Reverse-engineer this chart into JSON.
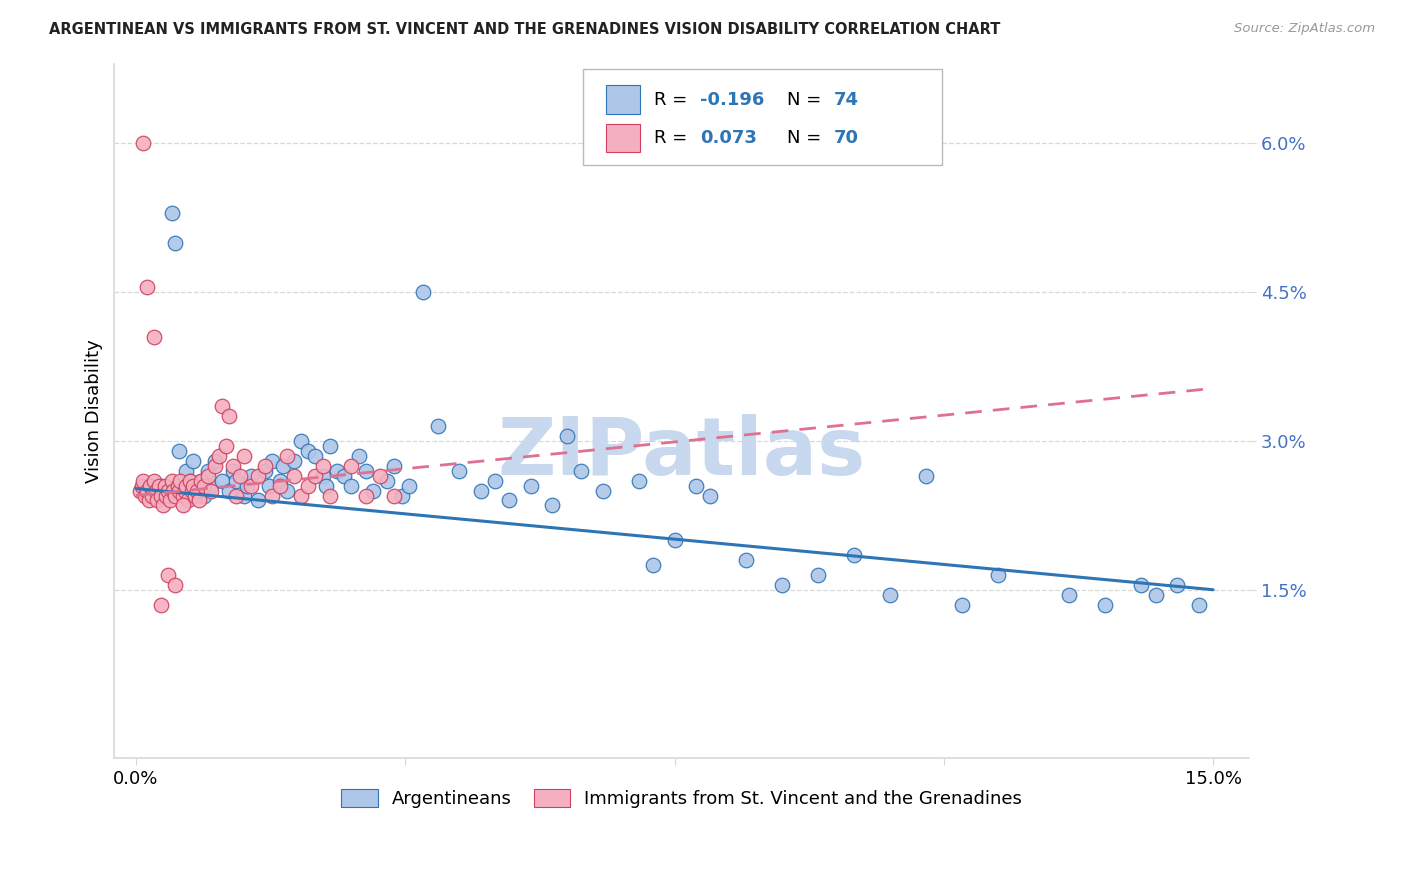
{
  "title": "ARGENTINEAN VS IMMIGRANTS FROM ST. VINCENT AND THE GRENADINES VISION DISABILITY CORRELATION CHART",
  "source": "Source: ZipAtlas.com",
  "ylabel": "Vision Disability",
  "xlim_left": -0.3,
  "xlim_right": 15.5,
  "ylim_bottom": -0.2,
  "ylim_top": 6.8,
  "yticks": [
    1.5,
    3.0,
    4.5,
    6.0
  ],
  "ytick_labels": [
    "1.5%",
    "3.0%",
    "4.5%",
    "6.0%"
  ],
  "xtick_positions": [
    0,
    3.75,
    7.5,
    11.25,
    15
  ],
  "xtick_labels": [
    "0.0%",
    "",
    "",
    "",
    "15.0%"
  ],
  "blue_R_text": "-0.196",
  "blue_N_text": "74",
  "pink_R_text": "0.073",
  "pink_N_text": "70",
  "blue_face": "#aec6e8",
  "blue_edge": "#2e75b6",
  "pink_face": "#f4b0c0",
  "pink_edge": "#d04060",
  "blue_line": "#2e75b6",
  "pink_line": "#e07090",
  "watermark_text": "ZIPatlas",
  "watermark_color": "#c8d8ee",
  "grid_color": "#d8d8d8",
  "title_color": "#222222",
  "source_color": "#999999",
  "yticklabel_color": "#4472c4",
  "blue_line_intercept": 2.52,
  "blue_line_slope": -0.068,
  "pink_line_intercept": 2.45,
  "pink_line_slope": 0.072,
  "blue_scatter_x": [
    0.35,
    0.5,
    0.55,
    0.6,
    0.7,
    0.75,
    0.8,
    0.85,
    0.9,
    0.95,
    1.0,
    1.05,
    1.1,
    1.2,
    1.3,
    1.35,
    1.4,
    1.5,
    1.55,
    1.6,
    1.7,
    1.8,
    1.85,
    1.9,
    2.0,
    2.05,
    2.1,
    2.2,
    2.3,
    2.4,
    2.5,
    2.6,
    2.65,
    2.7,
    2.8,
    2.9,
    3.0,
    3.1,
    3.2,
    3.3,
    3.5,
    3.6,
    3.7,
    3.8,
    4.0,
    4.2,
    4.5,
    4.8,
    5.0,
    5.2,
    5.5,
    5.8,
    6.0,
    6.2,
    6.5,
    7.0,
    7.2,
    7.5,
    7.8,
    8.0,
    8.5,
    9.0,
    9.5,
    10.0,
    10.5,
    11.0,
    11.5,
    12.0,
    13.0,
    13.5,
    14.0,
    14.2,
    14.5,
    14.8
  ],
  "blue_scatter_y": [
    2.55,
    5.3,
    5.0,
    2.9,
    2.7,
    2.6,
    2.8,
    2.5,
    2.6,
    2.45,
    2.7,
    2.55,
    2.8,
    2.6,
    2.5,
    2.7,
    2.6,
    2.45,
    2.55,
    2.65,
    2.4,
    2.7,
    2.55,
    2.8,
    2.6,
    2.75,
    2.5,
    2.8,
    3.0,
    2.9,
    2.85,
    2.65,
    2.55,
    2.95,
    2.7,
    2.65,
    2.55,
    2.85,
    2.7,
    2.5,
    2.6,
    2.75,
    2.45,
    2.55,
    4.5,
    3.15,
    2.7,
    2.5,
    2.6,
    2.4,
    2.55,
    2.35,
    3.05,
    2.7,
    2.5,
    2.6,
    1.75,
    2.0,
    2.55,
    2.45,
    1.8,
    1.55,
    1.65,
    1.85,
    1.45,
    2.65,
    1.35,
    1.65,
    1.45,
    1.35,
    1.55,
    1.45,
    1.55,
    1.35
  ],
  "pink_scatter_x": [
    0.05,
    0.08,
    0.1,
    0.12,
    0.15,
    0.18,
    0.2,
    0.22,
    0.25,
    0.28,
    0.3,
    0.32,
    0.35,
    0.38,
    0.4,
    0.42,
    0.45,
    0.48,
    0.5,
    0.52,
    0.55,
    0.58,
    0.6,
    0.62,
    0.65,
    0.68,
    0.7,
    0.72,
    0.75,
    0.78,
    0.8,
    0.82,
    0.85,
    0.88,
    0.9,
    0.95,
    1.0,
    1.05,
    1.1,
    1.15,
    1.2,
    1.25,
    1.3,
    1.35,
    1.4,
    1.45,
    1.5,
    1.6,
    1.7,
    1.8,
    1.9,
    2.0,
    2.1,
    2.2,
    2.3,
    2.4,
    2.5,
    2.6,
    2.7,
    3.0,
    3.2,
    3.4,
    3.6,
    0.15,
    0.25,
    0.35,
    0.45,
    0.55,
    0.65,
    0.1
  ],
  "pink_scatter_y": [
    2.5,
    2.55,
    2.6,
    2.45,
    2.5,
    2.4,
    2.55,
    2.45,
    2.6,
    2.5,
    2.4,
    2.55,
    2.45,
    2.35,
    2.55,
    2.45,
    2.5,
    2.4,
    2.6,
    2.5,
    2.45,
    2.55,
    2.5,
    2.6,
    2.45,
    2.5,
    2.55,
    2.4,
    2.6,
    2.5,
    2.55,
    2.45,
    2.5,
    2.4,
    2.6,
    2.55,
    2.65,
    2.5,
    2.75,
    2.85,
    3.35,
    2.95,
    3.25,
    2.75,
    2.45,
    2.65,
    2.85,
    2.55,
    2.65,
    2.75,
    2.45,
    2.55,
    2.85,
    2.65,
    2.45,
    2.55,
    2.65,
    2.75,
    2.45,
    2.75,
    2.45,
    2.65,
    2.45,
    4.55,
    4.05,
    1.35,
    1.65,
    1.55,
    2.35,
    6.0
  ]
}
